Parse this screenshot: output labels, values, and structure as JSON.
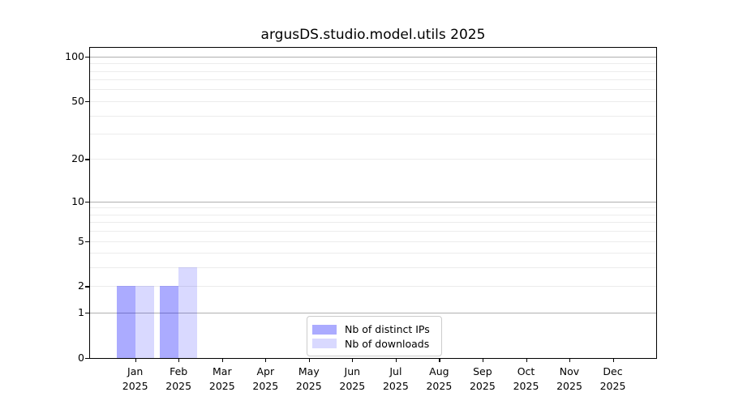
{
  "chart_data": {
    "type": "bar",
    "title": "argusDS.studio.model.utils 2025",
    "categories": [
      "Jan",
      "Feb",
      "Mar",
      "Apr",
      "May",
      "Jun",
      "Jul",
      "Aug",
      "Sep",
      "Oct",
      "Nov",
      "Dec"
    ],
    "year_label": "2025",
    "series": [
      {
        "name": "Nb of distinct IPs",
        "color": "rgba(0,0,255,0.33)",
        "values": [
          2,
          2,
          0,
          0,
          0,
          0,
          0,
          0,
          0,
          0,
          0,
          0
        ]
      },
      {
        "name": "Nb of downloads",
        "color": "rgba(0,0,255,0.15)",
        "values": [
          2,
          3,
          0,
          0,
          0,
          0,
          0,
          0,
          0,
          0,
          0,
          0
        ]
      }
    ],
    "yscale": "log1p",
    "ylim": [
      0,
      114.4
    ],
    "yticks": [
      100,
      50,
      20,
      10,
      5,
      2,
      1,
      0
    ],
    "gridlines": {
      "major": [
        1,
        10,
        100
      ],
      "minor": [
        2,
        3,
        4,
        5,
        6,
        7,
        8,
        9,
        20,
        30,
        40,
        50,
        60,
        70,
        80,
        90
      ]
    },
    "legend_position": "bottom-center",
    "colors": {
      "major_grid": "#b0b0b0",
      "minor_grid": "#ececec",
      "axis": "#000000",
      "background": "#ffffff"
    }
  }
}
